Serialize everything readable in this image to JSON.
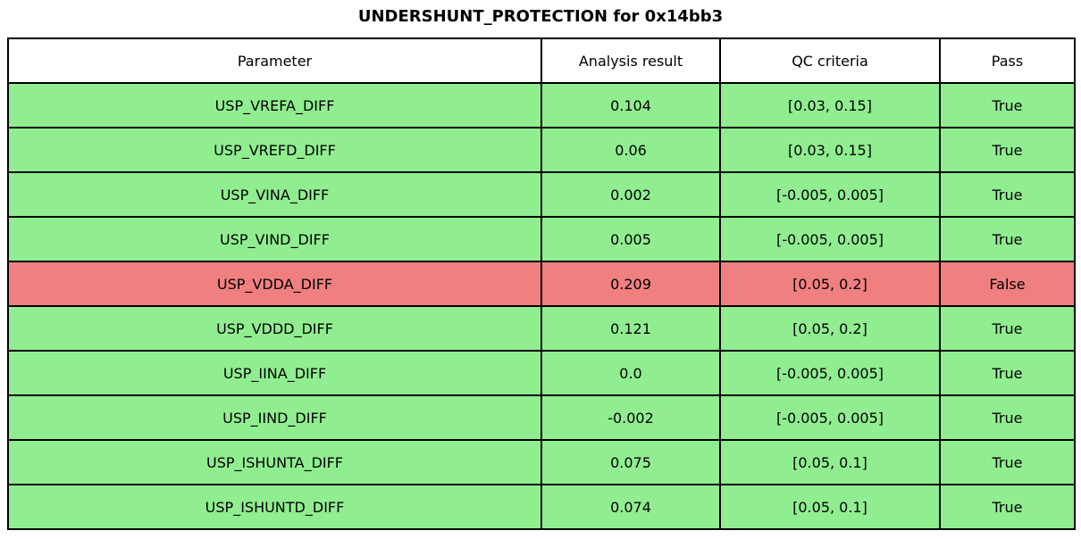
{
  "chart_data": {
    "type": "table",
    "title": "UNDERSHUNT_PROTECTION for 0x14bb3",
    "columns": [
      "Parameter",
      "Analysis result",
      "QC criteria",
      "Pass"
    ],
    "rows": [
      {
        "parameter": "USP_VREFA_DIFF",
        "analysis_result": "0.104",
        "qc_criteria": "[0.03, 0.15]",
        "pass": "True",
        "status": "pass"
      },
      {
        "parameter": "USP_VREFD_DIFF",
        "analysis_result": "0.06",
        "qc_criteria": "[0.03, 0.15]",
        "pass": "True",
        "status": "pass"
      },
      {
        "parameter": "USP_VINA_DIFF",
        "analysis_result": "0.002",
        "qc_criteria": "[-0.005, 0.005]",
        "pass": "True",
        "status": "pass"
      },
      {
        "parameter": "USP_VIND_DIFF",
        "analysis_result": "0.005",
        "qc_criteria": "[-0.005, 0.005]",
        "pass": "True",
        "status": "pass"
      },
      {
        "parameter": "USP_VDDA_DIFF",
        "analysis_result": "0.209",
        "qc_criteria": "[0.05, 0.2]",
        "pass": "False",
        "status": "fail"
      },
      {
        "parameter": "USP_VDDD_DIFF",
        "analysis_result": "0.121",
        "qc_criteria": "[0.05, 0.2]",
        "pass": "True",
        "status": "pass"
      },
      {
        "parameter": "USP_IINA_DIFF",
        "analysis_result": "0.0",
        "qc_criteria": "[-0.005, 0.005]",
        "pass": "True",
        "status": "pass"
      },
      {
        "parameter": "USP_IIND_DIFF",
        "analysis_result": "-0.002",
        "qc_criteria": "[-0.005, 0.005]",
        "pass": "True",
        "status": "pass"
      },
      {
        "parameter": "USP_ISHUNTA_DIFF",
        "analysis_result": "0.075",
        "qc_criteria": "[0.05, 0.1]",
        "pass": "True",
        "status": "pass"
      },
      {
        "parameter": "USP_ISHUNTD_DIFF",
        "analysis_result": "0.074",
        "qc_criteria": "[0.05, 0.1]",
        "pass": "True",
        "status": "pass"
      }
    ]
  },
  "colors": {
    "pass_row": "#90ee90",
    "fail_row": "#f08080",
    "border": "#000000",
    "header_bg": "#ffffff"
  }
}
